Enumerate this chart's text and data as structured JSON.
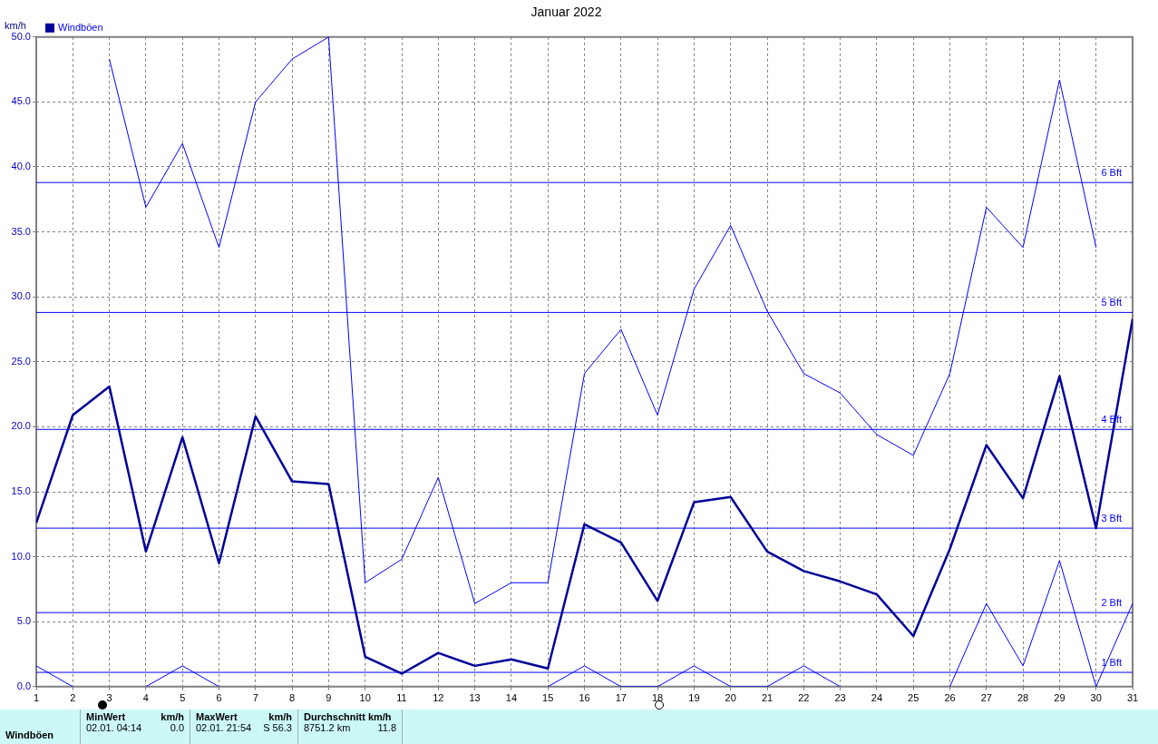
{
  "chart_data": {
    "type": "line",
    "title": "Januar 2022",
    "ylabel": "km/h",
    "x": [
      1,
      2,
      3,
      4,
      5,
      6,
      7,
      8,
      9,
      10,
      11,
      12,
      13,
      14,
      15,
      16,
      17,
      18,
      19,
      20,
      21,
      22,
      23,
      24,
      25,
      26,
      27,
      28,
      29,
      30,
      31
    ],
    "series": [
      {
        "color": "#0000ff",
        "values": [
          null,
          null,
          48.3,
          36.9,
          41.8,
          33.8,
          45.0,
          48.3,
          50.0,
          8.0,
          9.8,
          16.1,
          6.4,
          8.0,
          8.0,
          24.1,
          27.5,
          20.9,
          30.6,
          35.5,
          28.9,
          24.1,
          22.6,
          19.4,
          17.8,
          24.1,
          36.9,
          33.8,
          46.7,
          33.8,
          null
        ]
      },
      {
        "name": "Windböen",
        "color": "#000099",
        "values": [
          12.6,
          20.9,
          23.1,
          10.4,
          19.2,
          9.5,
          20.8,
          15.8,
          15.6,
          2.3,
          1.0,
          2.6,
          1.6,
          2.1,
          1.4,
          12.5,
          11.1,
          6.6,
          14.2,
          14.6,
          10.4,
          8.9,
          8.1,
          7.1,
          3.9,
          10.6,
          18.6,
          14.5,
          23.9,
          12.2,
          28.3
        ]
      },
      {
        "color": "#0000ff",
        "values": [
          1.6,
          0,
          null,
          0,
          1.6,
          0,
          null,
          null,
          null,
          null,
          null,
          null,
          null,
          null,
          0,
          1.6,
          0,
          0,
          1.6,
          0,
          0,
          1.6,
          0,
          null,
          null,
          0,
          6.4,
          1.6,
          9.7,
          0,
          6.4
        ]
      }
    ],
    "xlim": [
      1,
      31
    ],
    "xticks": [
      1,
      2,
      3,
      4,
      5,
      6,
      7,
      8,
      9,
      10,
      11,
      12,
      13,
      14,
      15,
      16,
      17,
      18,
      19,
      20,
      21,
      22,
      23,
      24,
      25,
      26,
      27,
      28,
      29,
      30,
      31
    ],
    "ylim": [
      0,
      50
    ],
    "yticks": [
      {
        "value": 0,
        "label": "0.0"
      },
      {
        "value": 5,
        "label": "5.0"
      },
      {
        "value": 10,
        "label": "10.0"
      },
      {
        "value": 15,
        "label": "15.0"
      },
      {
        "value": 20,
        "label": "20.0"
      },
      {
        "value": 25,
        "label": "25.0"
      },
      {
        "value": 30,
        "label": "30.0"
      },
      {
        "value": 35,
        "label": "35.0"
      },
      {
        "value": 40,
        "label": "40.0"
      },
      {
        "value": 45,
        "label": "45.0"
      },
      {
        "value": 50,
        "label": "50.0"
      }
    ],
    "ref_lines": [
      {
        "axis": "y",
        "value": 1.1,
        "label": "1 Bft",
        "color": "#0000ff"
      },
      {
        "axis": "y",
        "value": 5.7,
        "label": "2 Bft",
        "color": "#0000ff"
      },
      {
        "axis": "y",
        "value": 12.2,
        "label": "3 Bft",
        "color": "#0000ff"
      },
      {
        "axis": "y",
        "value": 19.8,
        "label": "4 Bft",
        "color": "#0000ff"
      },
      {
        "axis": "y",
        "value": 28.8,
        "label": "5 Bft",
        "color": "#0000ff"
      },
      {
        "axis": "y",
        "value": 38.8,
        "label": "6 Bft",
        "color": "#0000ff"
      }
    ],
    "grid": true,
    "legend": "top left",
    "line_style": "solid",
    "annotations": [
      "Windböen",
      "MinWert",
      "km/h",
      "02.01.  04:14",
      "0.0",
      "MaxWert",
      "km/h",
      "02.01.  21:54",
      "S 56.3",
      "Durchschnitt km/h",
      "8751.2 km",
      "11.8"
    ]
  }
}
